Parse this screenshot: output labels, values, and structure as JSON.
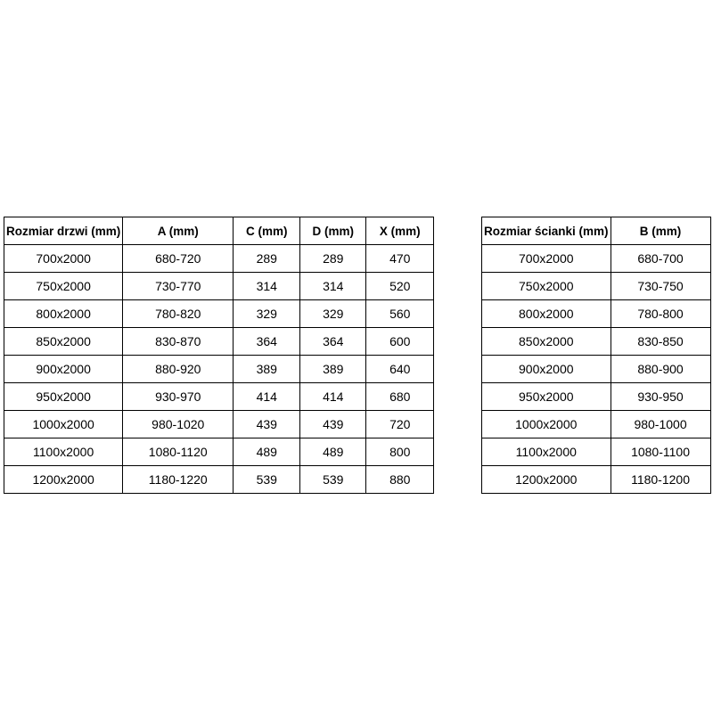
{
  "page": {
    "background_color": "#ffffff",
    "border_color": "#000000",
    "text_color": "#000000"
  },
  "tables": {
    "doors": {
      "name": "door-sizes-table",
      "headers": [
        "Rozmiar drzwi (mm)",
        "A (mm)",
        "C (mm)",
        "D (mm)",
        "X (mm)"
      ],
      "rows": [
        [
          "700x2000",
          "680-720",
          "289",
          "289",
          "470"
        ],
        [
          "750x2000",
          "730-770",
          "314",
          "314",
          "520"
        ],
        [
          "800x2000",
          "780-820",
          "329",
          "329",
          "560"
        ],
        [
          "850x2000",
          "830-870",
          "364",
          "364",
          "600"
        ],
        [
          "900x2000",
          "880-920",
          "389",
          "389",
          "640"
        ],
        [
          "950x2000",
          "930-970",
          "414",
          "414",
          "680"
        ],
        [
          "1000x2000",
          "980-1020",
          "439",
          "439",
          "720"
        ],
        [
          "1100x2000",
          "1080-1120",
          "489",
          "489",
          "800"
        ],
        [
          "1200x2000",
          "1180-1220",
          "539",
          "539",
          "880"
        ]
      ]
    },
    "walls": {
      "name": "wall-sizes-table",
      "headers": [
        "Rozmiar ścianki (mm)",
        "B (mm)"
      ],
      "rows": [
        [
          "700x2000",
          "680-700"
        ],
        [
          "750x2000",
          "730-750"
        ],
        [
          "800x2000",
          "780-800"
        ],
        [
          "850x2000",
          "830-850"
        ],
        [
          "900x2000",
          "880-900"
        ],
        [
          "950x2000",
          "930-950"
        ],
        [
          "1000x2000",
          "980-1000"
        ],
        [
          "1100x2000",
          "1080-1100"
        ],
        [
          "1200x2000",
          "1180-1200"
        ]
      ]
    }
  }
}
